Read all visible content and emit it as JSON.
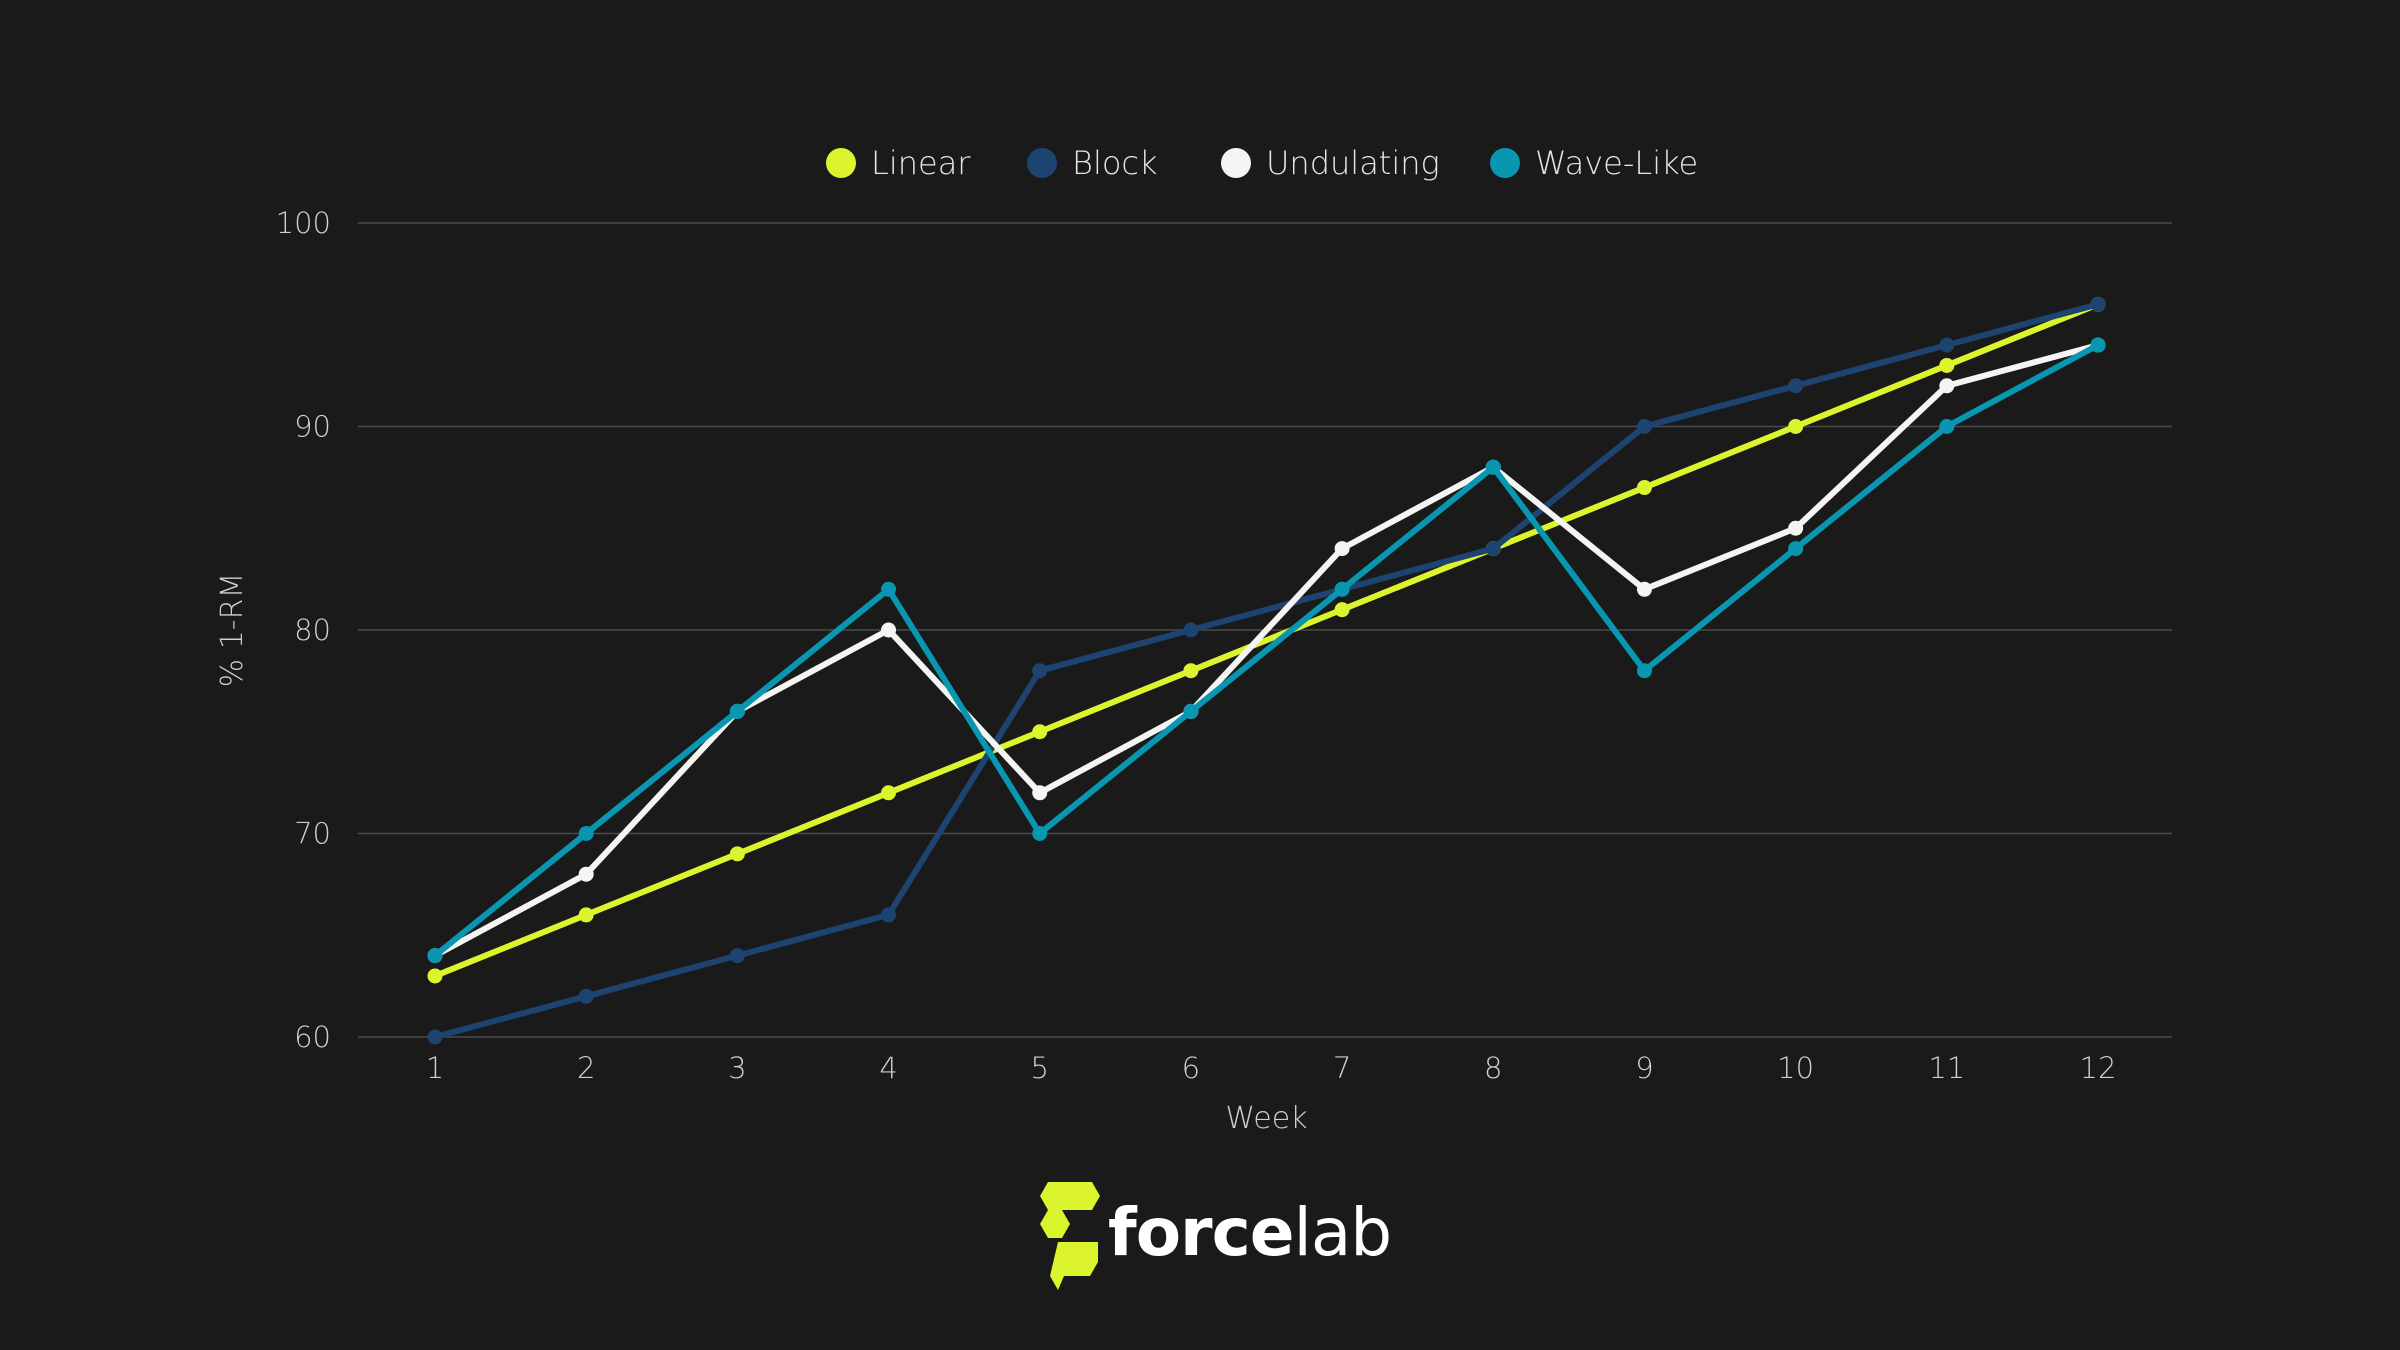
{
  "chart_data": {
    "type": "line",
    "title": "",
    "xlabel": "Week",
    "ylabel": "% 1-RM",
    "x": [
      1,
      2,
      3,
      4,
      5,
      6,
      7,
      8,
      9,
      10,
      11,
      12
    ],
    "x_tick_labels": [
      "1",
      "2",
      "3",
      "4",
      "5",
      "6",
      "7",
      "8",
      "9",
      "10",
      "11",
      "12"
    ],
    "ylim": [
      60,
      100
    ],
    "y_ticks": [
      60,
      70,
      80,
      90,
      100
    ],
    "grid": "horizontal",
    "legend_position": "top-center",
    "series": [
      {
        "name": "Linear",
        "color": "#dcf42d",
        "values": [
          63,
          66,
          69,
          72,
          75,
          78,
          81,
          84,
          87,
          90,
          93,
          96
        ]
      },
      {
        "name": "Block",
        "color": "#1d4470",
        "values": [
          60,
          62,
          64,
          66,
          78,
          80,
          82,
          84,
          90,
          92,
          94,
          96
        ]
      },
      {
        "name": "Undulating",
        "color": "#f4f4f2",
        "values": [
          64,
          68,
          76,
          80,
          72,
          76,
          84,
          88,
          82,
          85,
          92,
          94
        ]
      },
      {
        "name": "Wave-Like",
        "color": "#0896b0",
        "values": [
          64,
          70,
          76,
          82,
          70,
          76,
          82,
          88,
          78,
          84,
          90,
          94
        ]
      }
    ]
  },
  "brand": {
    "logo_text_bold": "force",
    "logo_text_light": "lab",
    "logo_icon": "forcelab-mark-icon",
    "logo_color": "#dcf42d"
  }
}
